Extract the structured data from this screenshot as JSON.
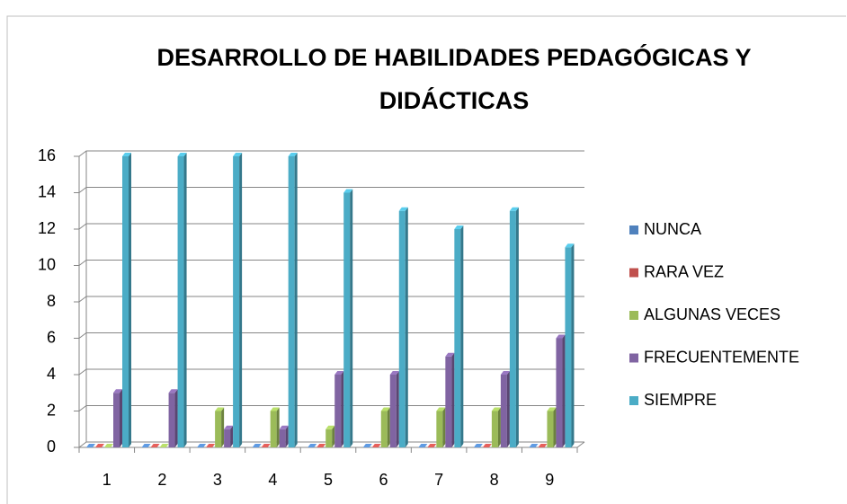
{
  "chart_data": {
    "type": "bar3d",
    "title": "DESARROLLO DE HABILIDADES PEDAGÓGICAS Y DIDÁCTICAS",
    "categories": [
      "1",
      "2",
      "3",
      "4",
      "5",
      "6",
      "7",
      "8",
      "9"
    ],
    "series": [
      {
        "name": "NUNCA",
        "color": "#4f81bd",
        "values": [
          0,
          0,
          0,
          0,
          0,
          0,
          0,
          0,
          0
        ]
      },
      {
        "name": "RARA VEZ",
        "color": "#c0504d",
        "values": [
          0,
          0,
          0,
          0,
          0,
          0,
          0,
          0,
          0
        ]
      },
      {
        "name": "ALGUNAS VECES",
        "color": "#9bbb59",
        "values": [
          0,
          0,
          2,
          2,
          1,
          2,
          2,
          2,
          2
        ]
      },
      {
        "name": "FRECUENTEMENTE",
        "color": "#8064a2",
        "values": [
          3,
          3,
          1,
          1,
          4,
          4,
          5,
          4,
          6
        ]
      },
      {
        "name": "SIEMPRE",
        "color": "#4bacc6",
        "values": [
          16,
          16,
          16,
          16,
          14,
          13,
          12,
          13,
          11
        ]
      }
    ],
    "ylim": [
      0,
      16
    ],
    "yticks": [
      0,
      2,
      4,
      6,
      8,
      10,
      12,
      14,
      16
    ],
    "grid": true,
    "legend": "right"
  }
}
